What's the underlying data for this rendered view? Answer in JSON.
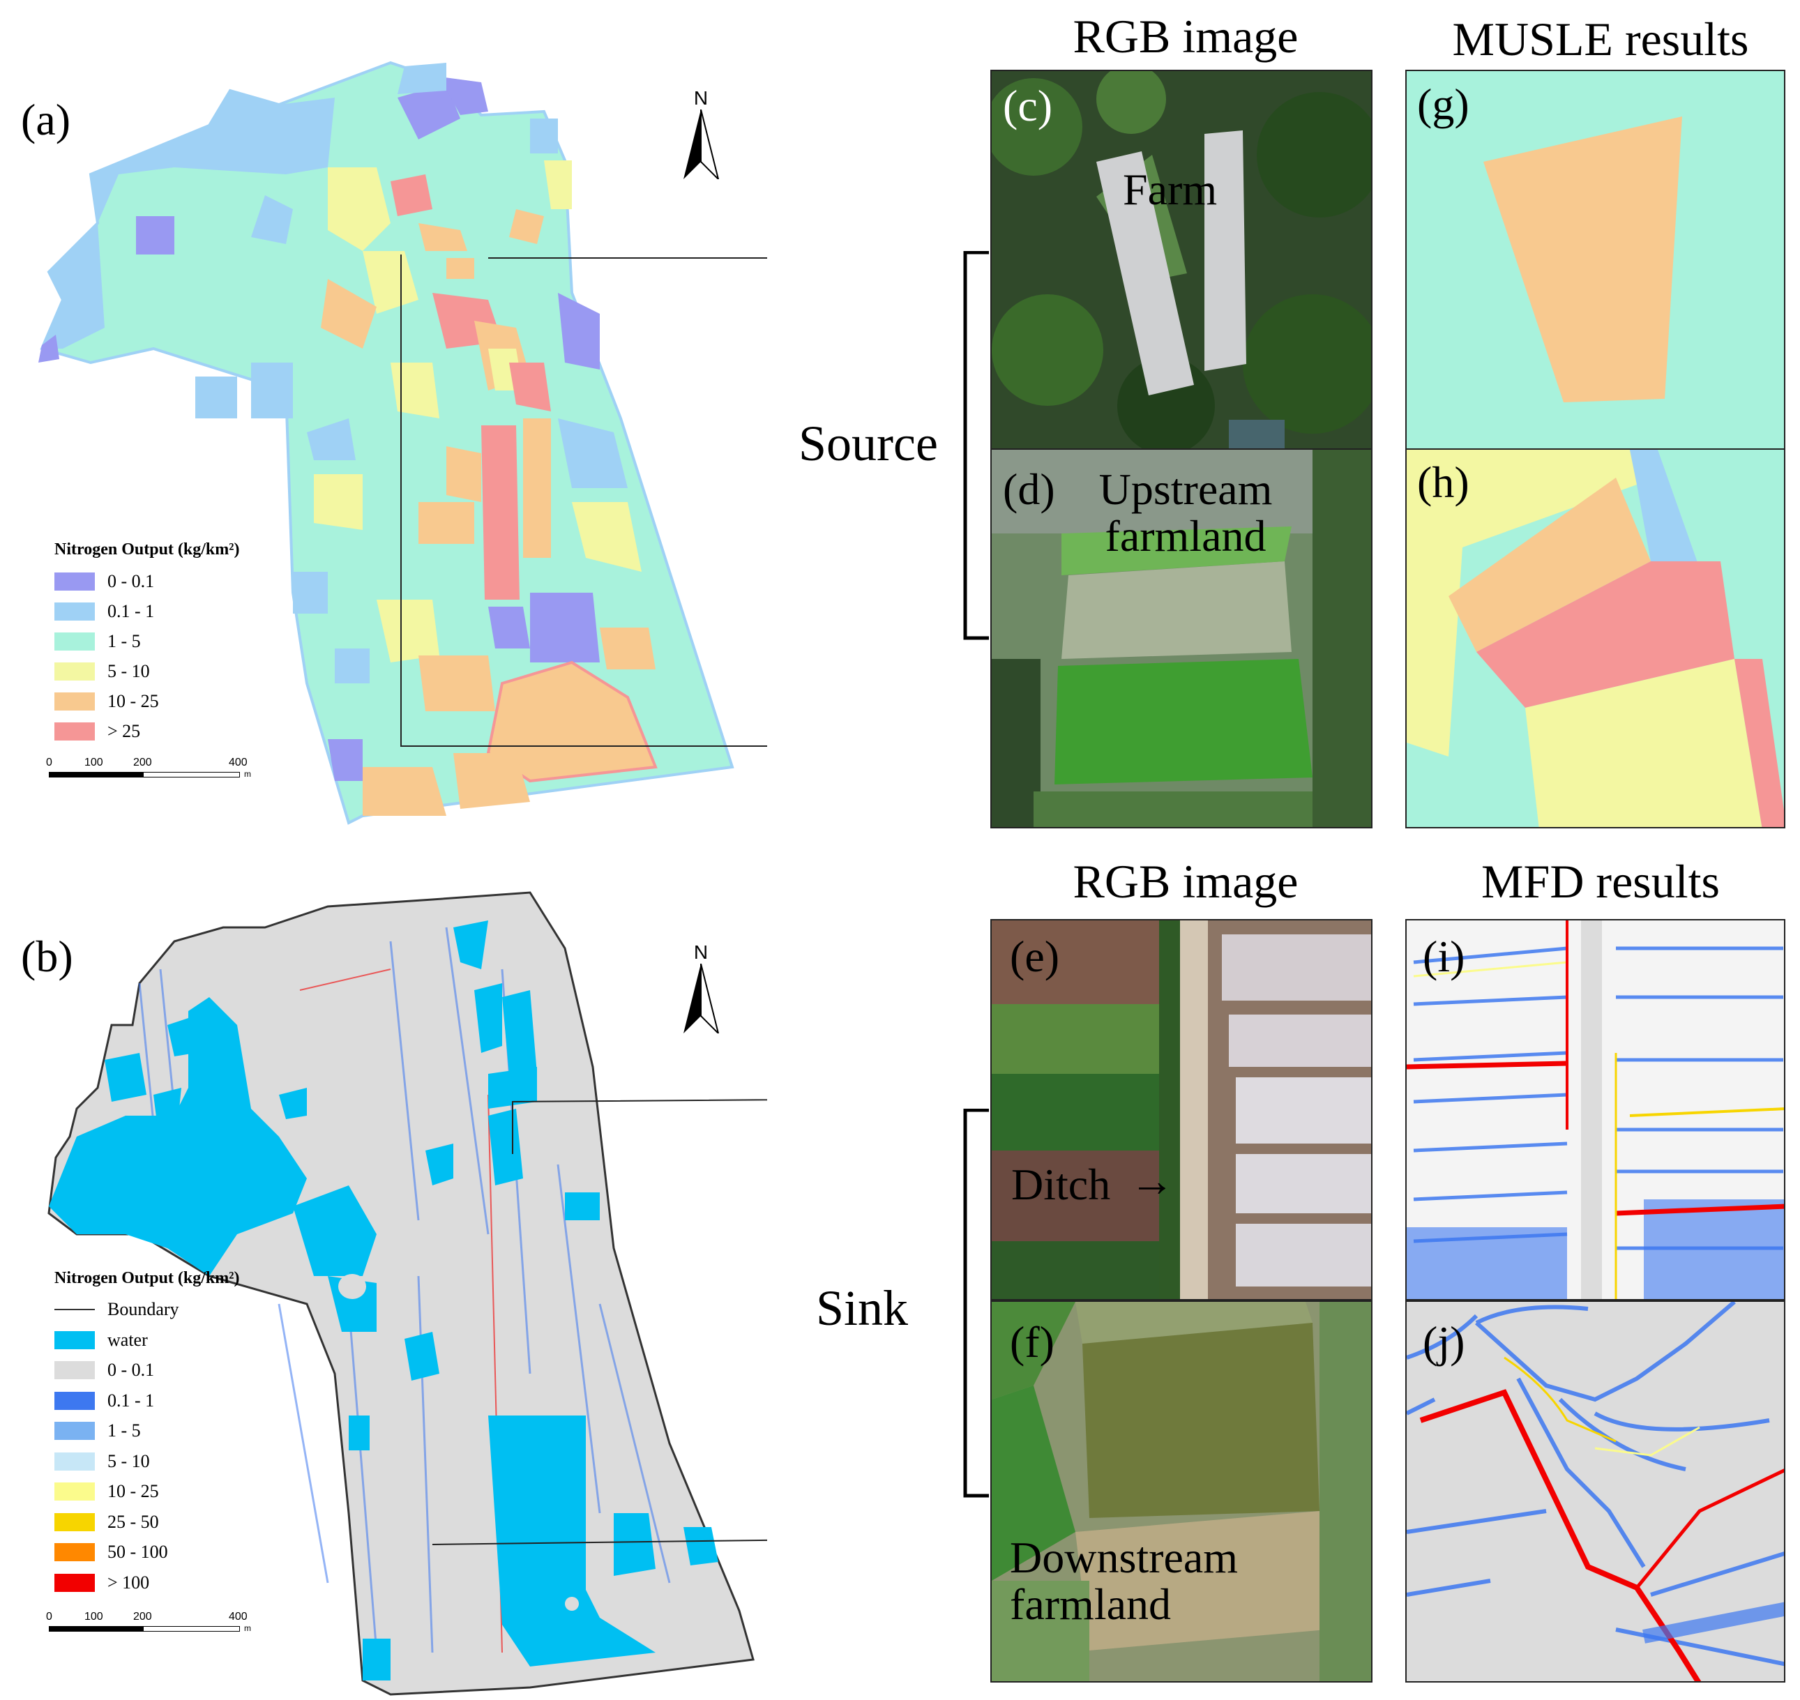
{
  "panel_labels": {
    "a": "(a)",
    "b": "(b)",
    "c": "(c)",
    "d": "(d)",
    "e": "(e)",
    "f": "(f)",
    "g": "(g)",
    "h": "(h)",
    "i": "(i)",
    "j": "(j)"
  },
  "column_titles": {
    "rgb_top": "RGB image",
    "musle": "MUSLE results",
    "rgb_bottom": "RGB image",
    "mfd": "MFD results"
  },
  "group_labels": {
    "source": "Source",
    "sink": "Sink"
  },
  "photo_labels": {
    "farm": "Farm",
    "upstream": "Upstream\nfarmland",
    "ditch": "Ditch",
    "downstream": "Downstream\nfarmland"
  },
  "north_arrow": "N",
  "map_a": {
    "legend_title": "Nitrogen Output (kg/km²)",
    "legend": [
      {
        "label": "0 - 0.1",
        "color": "#9999f2"
      },
      {
        "label": "0.1 - 1",
        "color": "#9fd1f5"
      },
      {
        "label": "1 - 5",
        "color": "#a8f2dc"
      },
      {
        "label": "5 - 10",
        "color": "#f3f7a2"
      },
      {
        "label": "10 - 25",
        "color": "#f8c98f"
      },
      {
        "label": "> 25",
        "color": "#f59696"
      }
    ],
    "scale_ticks": [
      "0",
      "100",
      "200",
      "400"
    ],
    "scale_unit": "m"
  },
  "map_b": {
    "legend_title": "Nitrogen Output (kg/km²)",
    "legend": [
      {
        "label": "Boundary",
        "color": "#333333",
        "kind": "line"
      },
      {
        "label": "water",
        "color": "#00bff2"
      },
      {
        "label": "0 - 0.1",
        "color": "#dcdcdc"
      },
      {
        "label": "0.1 - 1",
        "color": "#3d78f0"
      },
      {
        "label": "1 - 5",
        "color": "#7ab2f2"
      },
      {
        "label": "5 - 10",
        "color": "#c7e7f7"
      },
      {
        "label": "10 - 25",
        "color": "#fbfb8c"
      },
      {
        "label": "25 - 50",
        "color": "#f7d500"
      },
      {
        "label": "50 - 100",
        "color": "#ff8800"
      },
      {
        "label": "> 100",
        "color": "#f20000"
      }
    ],
    "scale_ticks": [
      "0",
      "100",
      "200",
      "400"
    ],
    "scale_unit": "m"
  }
}
